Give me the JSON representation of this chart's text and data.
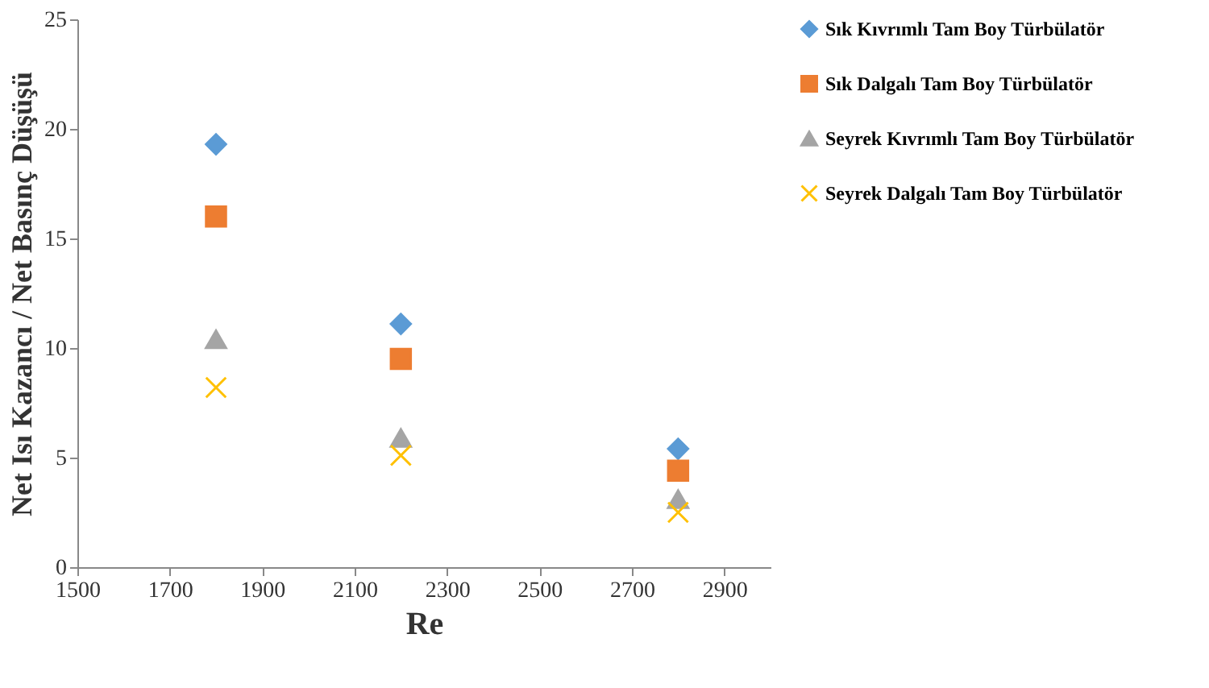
{
  "chart_data": {
    "type": "scatter",
    "xlabel": "Re",
    "ylabel": "Net Isı Kazancı / Net Basınç Düşüşü",
    "x": [
      1800,
      2200,
      2800
    ],
    "series": [
      {
        "name": "Sık Kıvrımlı Tam Boy Türbülatör",
        "color": "#5b9bd5",
        "marker": "diamond",
        "values": [
          19.3,
          11.1,
          5.4
        ]
      },
      {
        "name": "Sık Dalgalı Tam Boy Türbülatör",
        "color": "#ed7d31",
        "marker": "square",
        "values": [
          16.0,
          9.5,
          4.4
        ]
      },
      {
        "name": "Seyrek Kıvrımlı Tam Boy Türbülatör",
        "color": "#a5a5a5",
        "marker": "triangle",
        "values": [
          10.4,
          5.9,
          3.1
        ]
      },
      {
        "name": "Seyrek Dalgalı Tam Boy Türbülatör",
        "color": "#ffc000",
        "marker": "cross",
        "values": [
          8.2,
          5.1,
          2.5
        ]
      }
    ],
    "xlim": [
      1500,
      3000
    ],
    "xticks": [
      1500,
      1700,
      1900,
      2100,
      2300,
      2500,
      2700,
      2900
    ],
    "ylim": [
      0,
      25
    ],
    "yticks": [
      0,
      5,
      10,
      15,
      20,
      25
    ],
    "grid": false,
    "legend": "right"
  }
}
